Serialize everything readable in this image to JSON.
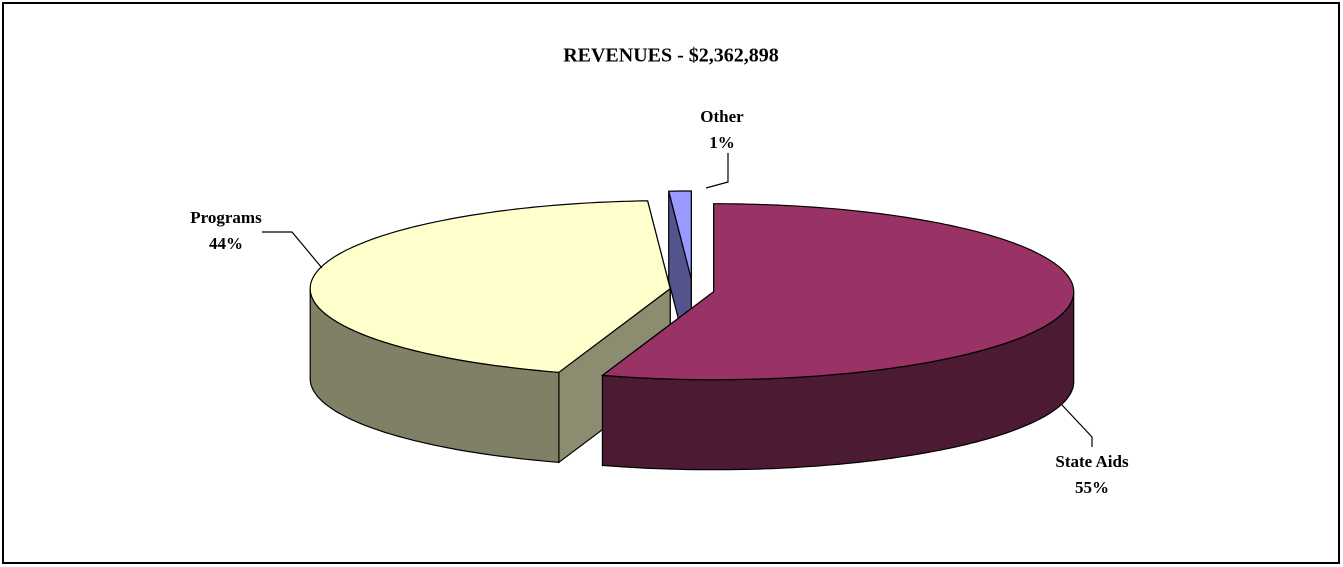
{
  "chart_data": {
    "type": "pie",
    "title": "REVENUES - $2,362,898",
    "categories": [
      "State Aids",
      "Programs",
      "Other"
    ],
    "values": [
      55,
      44,
      1
    ],
    "value_labels": [
      "55%",
      "44%",
      "1%"
    ],
    "colors": [
      "#993366",
      "#ffffcc",
      "#9999ff"
    ]
  }
}
